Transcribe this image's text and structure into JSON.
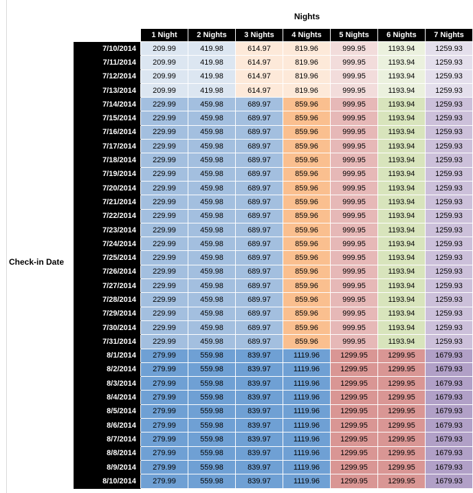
{
  "axis": {
    "col_title": "Nights",
    "row_title": "Check-in Date"
  },
  "colors": {
    "header_bg": "#000000",
    "header_text": "#FFFFFF",
    "cell_gridline": "#FFFFFF",
    "sheet_gridline": "#D9D9D9"
  },
  "table": {
    "columns": [
      "1 Night",
      "2 Nights",
      "3 Nights",
      "4 Nights",
      "5 Nights",
      "6 Nights",
      "7 Nights"
    ],
    "tier_colors": {
      "t1": [
        "#DCE6F1",
        "#DCE6F1",
        "#FDE9D9",
        "#FDE9D9",
        "#F2DCDB",
        "#EBF1DE",
        "#E4DFEC"
      ],
      "t2": [
        "#A3BFDF",
        "#A3BFDF",
        "#A3BFDF",
        "#FABF8F",
        "#E6B8B7",
        "#D8E4BC",
        "#CCC0DA"
      ],
      "t3": [
        "#6FA0D4",
        "#6FA0D4",
        "#6FA0D4",
        "#6FA0D4",
        "#D99694",
        "#D99694",
        "#B1A0C7"
      ]
    },
    "rows": [
      {
        "date": "7/10/2014",
        "tier": "t1",
        "values": [
          "209.99",
          "419.98",
          "614.97",
          "819.96",
          "999.95",
          "1193.94",
          "1259.93"
        ]
      },
      {
        "date": "7/11/2014",
        "tier": "t1",
        "values": [
          "209.99",
          "419.98",
          "614.97",
          "819.96",
          "999.95",
          "1193.94",
          "1259.93"
        ]
      },
      {
        "date": "7/12/2014",
        "tier": "t1",
        "values": [
          "209.99",
          "419.98",
          "614.97",
          "819.96",
          "999.95",
          "1193.94",
          "1259.93"
        ]
      },
      {
        "date": "7/13/2014",
        "tier": "t1",
        "values": [
          "209.99",
          "419.98",
          "614.97",
          "819.96",
          "999.95",
          "1193.94",
          "1259.93"
        ]
      },
      {
        "date": "7/14/2014",
        "tier": "t2",
        "values": [
          "229.99",
          "459.98",
          "689.97",
          "859.96",
          "999.95",
          "1193.94",
          "1259.93"
        ]
      },
      {
        "date": "7/15/2014",
        "tier": "t2",
        "values": [
          "229.99",
          "459.98",
          "689.97",
          "859.96",
          "999.95",
          "1193.94",
          "1259.93"
        ]
      },
      {
        "date": "7/16/2014",
        "tier": "t2",
        "values": [
          "229.99",
          "459.98",
          "689.97",
          "859.96",
          "999.95",
          "1193.94",
          "1259.93"
        ]
      },
      {
        "date": "7/17/2014",
        "tier": "t2",
        "values": [
          "229.99",
          "459.98",
          "689.97",
          "859.96",
          "999.95",
          "1193.94",
          "1259.93"
        ]
      },
      {
        "date": "7/18/2014",
        "tier": "t2",
        "values": [
          "229.99",
          "459.98",
          "689.97",
          "859.96",
          "999.95",
          "1193.94",
          "1259.93"
        ]
      },
      {
        "date": "7/19/2014",
        "tier": "t2",
        "values": [
          "229.99",
          "459.98",
          "689.97",
          "859.96",
          "999.95",
          "1193.94",
          "1259.93"
        ]
      },
      {
        "date": "7/20/2014",
        "tier": "t2",
        "values": [
          "229.99",
          "459.98",
          "689.97",
          "859.96",
          "999.95",
          "1193.94",
          "1259.93"
        ]
      },
      {
        "date": "7/21/2014",
        "tier": "t2",
        "values": [
          "229.99",
          "459.98",
          "689.97",
          "859.96",
          "999.95",
          "1193.94",
          "1259.93"
        ]
      },
      {
        "date": "7/22/2014",
        "tier": "t2",
        "values": [
          "229.99",
          "459.98",
          "689.97",
          "859.96",
          "999.95",
          "1193.94",
          "1259.93"
        ]
      },
      {
        "date": "7/23/2014",
        "tier": "t2",
        "values": [
          "229.99",
          "459.98",
          "689.97",
          "859.96",
          "999.95",
          "1193.94",
          "1259.93"
        ]
      },
      {
        "date": "7/24/2014",
        "tier": "t2",
        "values": [
          "229.99",
          "459.98",
          "689.97",
          "859.96",
          "999.95",
          "1193.94",
          "1259.93"
        ]
      },
      {
        "date": "7/25/2014",
        "tier": "t2",
        "values": [
          "229.99",
          "459.98",
          "689.97",
          "859.96",
          "999.95",
          "1193.94",
          "1259.93"
        ]
      },
      {
        "date": "7/26/2014",
        "tier": "t2",
        "values": [
          "229.99",
          "459.98",
          "689.97",
          "859.96",
          "999.95",
          "1193.94",
          "1259.93"
        ]
      },
      {
        "date": "7/27/2014",
        "tier": "t2",
        "values": [
          "229.99",
          "459.98",
          "689.97",
          "859.96",
          "999.95",
          "1193.94",
          "1259.93"
        ]
      },
      {
        "date": "7/28/2014",
        "tier": "t2",
        "values": [
          "229.99",
          "459.98",
          "689.97",
          "859.96",
          "999.95",
          "1193.94",
          "1259.93"
        ]
      },
      {
        "date": "7/29/2014",
        "tier": "t2",
        "values": [
          "229.99",
          "459.98",
          "689.97",
          "859.96",
          "999.95",
          "1193.94",
          "1259.93"
        ]
      },
      {
        "date": "7/30/2014",
        "tier": "t2",
        "values": [
          "229.99",
          "459.98",
          "689.97",
          "859.96",
          "999.95",
          "1193.94",
          "1259.93"
        ]
      },
      {
        "date": "7/31/2014",
        "tier": "t2",
        "values": [
          "229.99",
          "459.98",
          "689.97",
          "859.96",
          "999.95",
          "1193.94",
          "1259.93"
        ]
      },
      {
        "date": "8/1/2014",
        "tier": "t3",
        "values": [
          "279.99",
          "559.98",
          "839.97",
          "1119.96",
          "1299.95",
          "1299.95",
          "1679.93"
        ]
      },
      {
        "date": "8/2/2014",
        "tier": "t3",
        "values": [
          "279.99",
          "559.98",
          "839.97",
          "1119.96",
          "1299.95",
          "1299.95",
          "1679.93"
        ]
      },
      {
        "date": "8/3/2014",
        "tier": "t3",
        "values": [
          "279.99",
          "559.98",
          "839.97",
          "1119.96",
          "1299.95",
          "1299.95",
          "1679.93"
        ]
      },
      {
        "date": "8/4/2014",
        "tier": "t3",
        "values": [
          "279.99",
          "559.98",
          "839.97",
          "1119.96",
          "1299.95",
          "1299.95",
          "1679.93"
        ]
      },
      {
        "date": "8/5/2014",
        "tier": "t3",
        "values": [
          "279.99",
          "559.98",
          "839.97",
          "1119.96",
          "1299.95",
          "1299.95",
          "1679.93"
        ]
      },
      {
        "date": "8/6/2014",
        "tier": "t3",
        "values": [
          "279.99",
          "559.98",
          "839.97",
          "1119.96",
          "1299.95",
          "1299.95",
          "1679.93"
        ]
      },
      {
        "date": "8/7/2014",
        "tier": "t3",
        "values": [
          "279.99",
          "559.98",
          "839.97",
          "1119.96",
          "1299.95",
          "1299.95",
          "1679.93"
        ]
      },
      {
        "date": "8/8/2014",
        "tier": "t3",
        "values": [
          "279.99",
          "559.98",
          "839.97",
          "1119.96",
          "1299.95",
          "1299.95",
          "1679.93"
        ]
      },
      {
        "date": "8/9/2014",
        "tier": "t3",
        "values": [
          "279.99",
          "559.98",
          "839.97",
          "1119.96",
          "1299.95",
          "1299.95",
          "1679.93"
        ]
      },
      {
        "date": "8/10/2014",
        "tier": "t3",
        "values": [
          "279.99",
          "559.98",
          "839.97",
          "1119.96",
          "1299.95",
          "1299.95",
          "1679.93"
        ]
      }
    ]
  }
}
